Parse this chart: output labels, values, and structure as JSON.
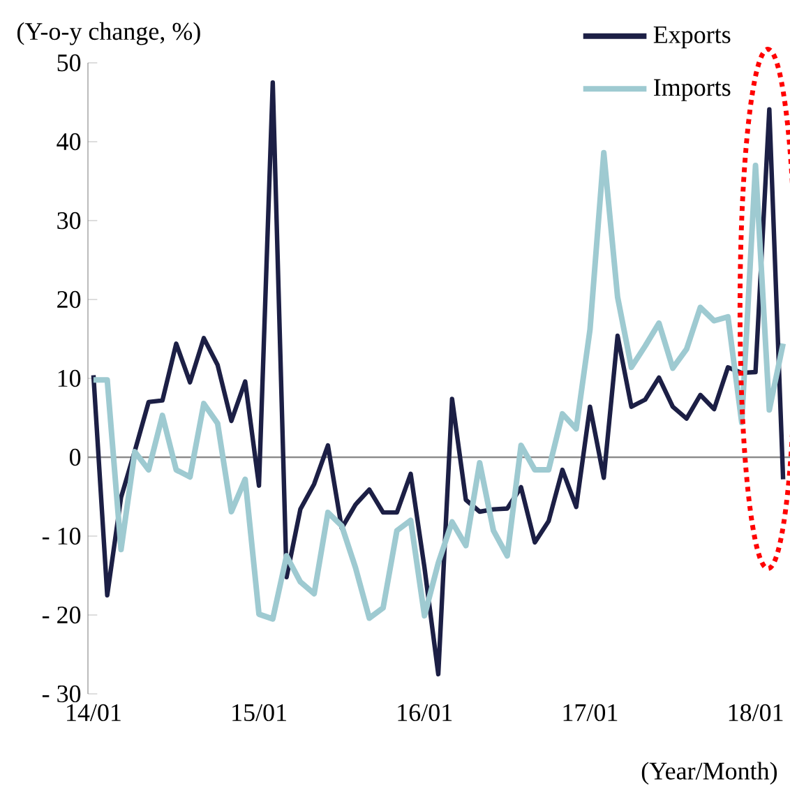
{
  "chart_data": {
    "type": "line",
    "ylabel": "(Y-o-y change, %)",
    "xlabel": "(Year/Month)",
    "categories": [
      "14/01",
      null,
      null,
      null,
      null,
      null,
      null,
      null,
      null,
      null,
      null,
      null,
      "15/01",
      null,
      null,
      null,
      null,
      null,
      null,
      null,
      null,
      null,
      null,
      null,
      "16/01",
      null,
      null,
      null,
      null,
      null,
      null,
      null,
      null,
      null,
      null,
      null,
      "17/01",
      null,
      null,
      null,
      null,
      null,
      null,
      null,
      null,
      null,
      null,
      null,
      "18/01",
      null,
      null
    ],
    "series": [
      {
        "name": "Exports",
        "color": "#1c1f45",
        "values": [
          10.4,
          -17.5,
          -5.1,
          0.8,
          7.0,
          7.2,
          14.4,
          9.5,
          15.1,
          11.7,
          4.6,
          9.6,
          -3.6,
          47.5,
          -15.2,
          -6.6,
          -3.4,
          1.5,
          -9.0,
          -6.0,
          -4.1,
          -7.0,
          -7.0,
          -2.1,
          -14.0,
          -27.5,
          7.4,
          -5.4,
          -6.9,
          -6.6,
          -6.5,
          -3.8,
          -10.8,
          -8.1,
          -1.6,
          -6.3,
          6.4,
          -2.6,
          15.4,
          6.4,
          7.3,
          10.1,
          6.4,
          4.9,
          7.9,
          6.1,
          11.4,
          10.7,
          10.8,
          44.1,
          -2.8
        ]
      },
      {
        "name": "Imports",
        "color": "#9ecad1",
        "values": [
          9.8,
          9.8,
          -11.7,
          0.7,
          -1.6,
          5.3,
          -1.6,
          -2.5,
          6.8,
          4.3,
          -6.9,
          -2.8,
          -19.9,
          -20.5,
          -12.5,
          -15.8,
          -17.3,
          -7.0,
          -8.7,
          -14.0,
          -20.4,
          -19.1,
          -9.3,
          -8.0,
          -20.1,
          -13.4,
          -8.2,
          -11.2,
          -0.7,
          -9.3,
          -12.5,
          1.5,
          -1.6,
          -1.6,
          5.5,
          3.6,
          16.2,
          38.6,
          20.3,
          11.4,
          14.1,
          17.0,
          11.3,
          13.7,
          19.0,
          17.3,
          17.8,
          4.4,
          37.0,
          6.0,
          14.4
        ]
      }
    ],
    "ylim": [
      -30,
      50
    ],
    "yticks": [
      {
        "value": -30,
        "label": "- 30"
      },
      {
        "value": -20,
        "label": "- 20"
      },
      {
        "value": -10,
        "label": "- 10"
      },
      0,
      10,
      20,
      30,
      40,
      50
    ],
    "ref_lines": [
      {
        "axis": "y",
        "value": 0,
        "color": "#8c8c8c"
      }
    ],
    "legend": "top right"
  }
}
